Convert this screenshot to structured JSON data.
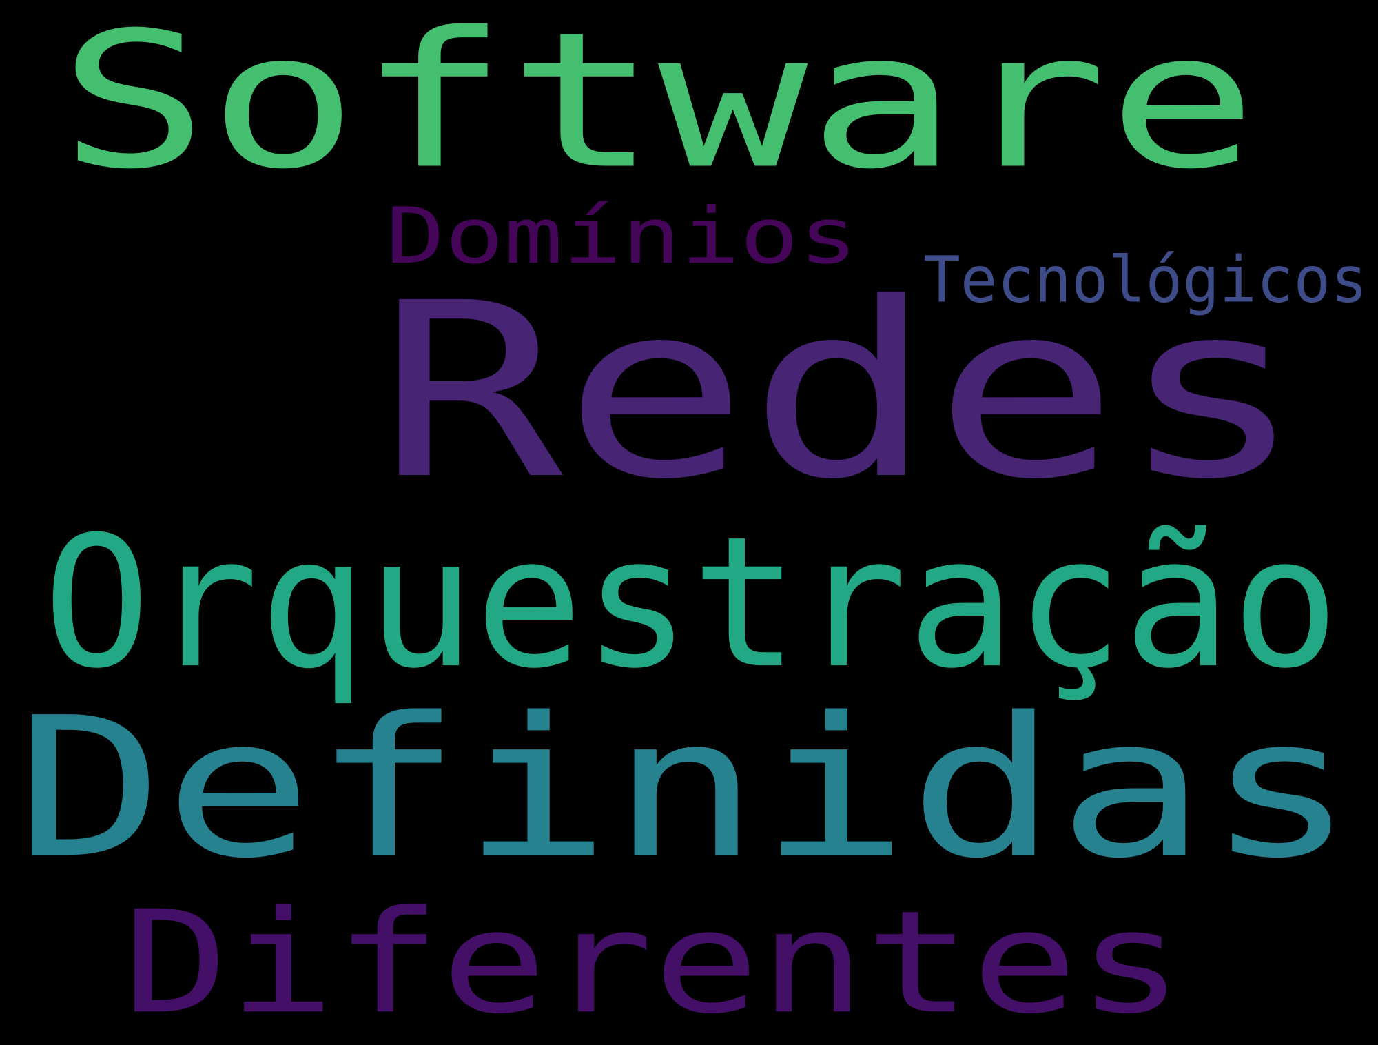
{
  "background": "#000000",
  "words": [
    {
      "text": "Redes",
      "color": "#482475"
    },
    {
      "text": "Definidas",
      "color": "#26828e"
    },
    {
      "text": "Software",
      "color": "#44bf70"
    },
    {
      "text": "Orquestração",
      "color": "#22a884"
    },
    {
      "text": "Diferentes",
      "color": "#440f66"
    },
    {
      "text": "Domínios",
      "color": "#450559"
    },
    {
      "text": "Tecnológicos",
      "color": "#3e4c8a"
    }
  ]
}
